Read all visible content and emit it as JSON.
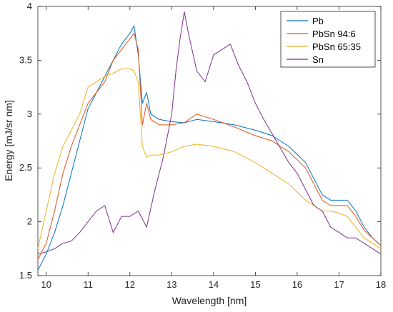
{
  "chart_data": {
    "type": "line",
    "xlabel": "Wavelength [nm]",
    "ylabel": "Energy [mJ/sr nm]",
    "xlim": [
      9.8,
      18
    ],
    "ylim": [
      1.5,
      4
    ],
    "xticks": [
      "10",
      "11",
      "12",
      "13",
      "14",
      "15",
      "16",
      "17",
      "18"
    ],
    "yticks": [
      "1.5",
      "2",
      "2.5",
      "3",
      "3.5",
      "4"
    ],
    "grid": false,
    "legend_position": "top-right",
    "series": [
      {
        "name": "Pb",
        "color": "#0072BD",
        "x": [
          9.8,
          10.0,
          10.2,
          10.4,
          10.6,
          10.8,
          11.0,
          11.2,
          11.4,
          11.6,
          11.8,
          12.0,
          12.1,
          12.2,
          12.3,
          12.4,
          12.5,
          12.7,
          13.0,
          13.3,
          13.6,
          14.0,
          14.5,
          15.0,
          15.4,
          15.8,
          16.2,
          16.4,
          16.6,
          16.8,
          17.0,
          17.2,
          17.4,
          17.6,
          17.8,
          18.0
        ],
        "y": [
          1.55,
          1.7,
          1.9,
          2.15,
          2.45,
          2.75,
          3.05,
          3.2,
          3.35,
          3.5,
          3.65,
          3.75,
          3.82,
          3.55,
          3.1,
          3.2,
          3.0,
          2.95,
          2.93,
          2.92,
          2.95,
          2.93,
          2.9,
          2.85,
          2.8,
          2.7,
          2.55,
          2.4,
          2.25,
          2.2,
          2.2,
          2.2,
          2.1,
          1.95,
          1.85,
          1.78
        ]
      },
      {
        "name": "PbSn 94:6",
        "color": "#D95319",
        "x": [
          9.8,
          10.0,
          10.2,
          10.4,
          10.6,
          10.8,
          11.0,
          11.2,
          11.4,
          11.6,
          11.8,
          12.0,
          12.1,
          12.2,
          12.3,
          12.4,
          12.5,
          12.7,
          13.0,
          13.3,
          13.6,
          14.0,
          14.5,
          15.0,
          15.4,
          15.8,
          16.2,
          16.4,
          16.6,
          16.8,
          17.0,
          17.2,
          17.4,
          17.6,
          17.8,
          18.0
        ],
        "y": [
          1.65,
          1.8,
          2.1,
          2.45,
          2.7,
          2.9,
          3.1,
          3.2,
          3.3,
          3.5,
          3.6,
          3.7,
          3.75,
          3.6,
          2.9,
          3.1,
          2.95,
          2.9,
          2.9,
          2.92,
          3.0,
          2.95,
          2.88,
          2.8,
          2.75,
          2.65,
          2.5,
          2.35,
          2.2,
          2.15,
          2.15,
          2.15,
          2.05,
          1.92,
          1.85,
          1.78
        ]
      },
      {
        "name": "PbSn 65:35",
        "color": "#EDB120",
        "x": [
          9.8,
          10.0,
          10.2,
          10.4,
          10.6,
          10.8,
          11.0,
          11.2,
          11.4,
          11.6,
          11.8,
          12.0,
          12.1,
          12.2,
          12.3,
          12.4,
          12.5,
          12.7,
          13.0,
          13.3,
          13.6,
          14.0,
          14.5,
          15.0,
          15.4,
          15.8,
          16.2,
          16.4,
          16.6,
          16.8,
          17.0,
          17.2,
          17.4,
          17.6,
          17.8,
          18.0
        ],
        "y": [
          1.75,
          2.1,
          2.45,
          2.7,
          2.85,
          3.0,
          3.25,
          3.3,
          3.35,
          3.38,
          3.42,
          3.42,
          3.4,
          3.3,
          2.7,
          2.6,
          2.62,
          2.62,
          2.65,
          2.7,
          2.72,
          2.7,
          2.65,
          2.55,
          2.45,
          2.35,
          2.2,
          2.15,
          2.1,
          2.1,
          2.08,
          2.05,
          1.95,
          1.85,
          1.8,
          1.75
        ]
      },
      {
        "name": "Sn",
        "color": "#7E2F8E",
        "x": [
          9.8,
          10.0,
          10.2,
          10.4,
          10.6,
          10.8,
          11.0,
          11.2,
          11.4,
          11.6,
          11.8,
          12.0,
          12.2,
          12.4,
          12.6,
          12.8,
          13.0,
          13.1,
          13.2,
          13.3,
          13.4,
          13.6,
          13.8,
          14.0,
          14.2,
          14.4,
          14.6,
          14.8,
          15.0,
          15.2,
          15.5,
          15.8,
          16.0,
          16.2,
          16.4,
          16.6,
          16.8,
          17.0,
          17.2,
          17.4,
          17.6,
          17.8,
          18.0
        ],
        "y": [
          1.7,
          1.72,
          1.75,
          1.8,
          1.82,
          1.9,
          2.0,
          2.1,
          2.15,
          1.9,
          2.05,
          2.05,
          2.1,
          1.95,
          2.3,
          2.6,
          3.0,
          3.4,
          3.7,
          3.95,
          3.75,
          3.4,
          3.3,
          3.55,
          3.6,
          3.65,
          3.45,
          3.3,
          3.1,
          2.95,
          2.75,
          2.55,
          2.45,
          2.3,
          2.15,
          2.1,
          1.95,
          1.9,
          1.85,
          1.85,
          1.8,
          1.75,
          1.7
        ]
      }
    ]
  }
}
